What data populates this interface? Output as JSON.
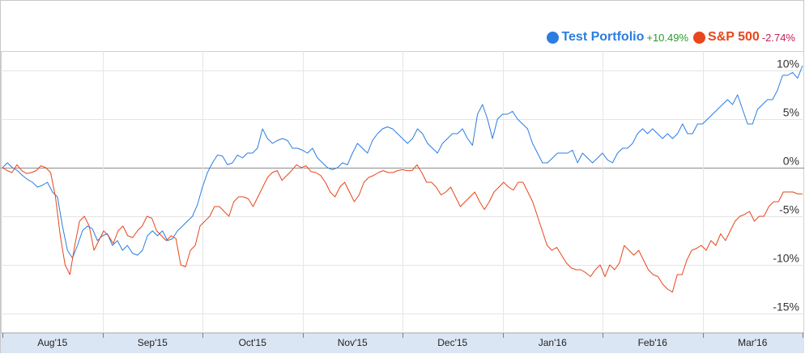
{
  "legend": {
    "items": [
      {
        "name": "Test Portfolio",
        "change": "+10.49%",
        "dot_color": "#2b7de0",
        "name_color": "#2b7de0",
        "change_color": "#2a9a2a"
      },
      {
        "name": "S&P 500",
        "change": "-2.74%",
        "dot_color": "#e8461c",
        "name_color": "#e8461c",
        "change_color": "#c0225a"
      }
    ]
  },
  "chart_data": {
    "type": "line",
    "title": "",
    "xlabel": "",
    "ylabel": "",
    "ylim": [
      -17,
      12
    ],
    "y_ticks": [
      {
        "value": 10,
        "label": "10%"
      },
      {
        "value": 5,
        "label": "5%"
      },
      {
        "value": 0,
        "label": "0%"
      },
      {
        "value": -5,
        "label": "-5%"
      },
      {
        "value": -10,
        "label": "-10%"
      },
      {
        "value": -15,
        "label": "-15%"
      }
    ],
    "x_ticks": [
      "Aug'15",
      "Sep'15",
      "Oct'15",
      "Nov'15",
      "Dec'15",
      "Jan'16",
      "Feb'16",
      "Mar'16"
    ],
    "grid": true,
    "legend_position": "top-right",
    "series": [
      {
        "name": "Test Portfolio",
        "color": "#2b7de0",
        "values": [
          0,
          0.5,
          0,
          -0.3,
          -0.8,
          -1.2,
          -1.5,
          -2,
          -1.8,
          -1.5,
          -2.5,
          -3,
          -6,
          -8.5,
          -9.3,
          -8,
          -6.5,
          -6,
          -6.3,
          -7.5,
          -7,
          -6.8,
          -8,
          -7.5,
          -8.5,
          -8,
          -8.8,
          -9,
          -8.5,
          -7,
          -6.5,
          -7,
          -6.5,
          -7.5,
          -7.3,
          -6.5,
          -6,
          -5.5,
          -5,
          -3.8,
          -2,
          -0.5,
          0.5,
          1.3,
          1.2,
          0.3,
          0.5,
          1.3,
          1,
          1.5,
          1.5,
          2,
          4,
          3,
          2.5,
          2.8,
          3,
          2.8,
          2,
          2,
          1.8,
          1.5,
          2,
          1,
          0.5,
          0,
          -0.2,
          0,
          0.5,
          0.3,
          1.5,
          2.5,
          2,
          1.5,
          2.8,
          3.5,
          4,
          4.2,
          4,
          3.5,
          3,
          2.5,
          3,
          4,
          3.5,
          2.5,
          2,
          1.5,
          2.5,
          3,
          3.5,
          3.5,
          4,
          3,
          2.3,
          5.5,
          6.5,
          5,
          3,
          5,
          5.5,
          5.5,
          5.8,
          5,
          4.5,
          4,
          2.5,
          1.5,
          0.5,
          0.5,
          1,
          1.5,
          1.5,
          1.5,
          1.8,
          0.5,
          1.5,
          1,
          0.5,
          1,
          1.5,
          0.8,
          0.5,
          1.5,
          2,
          2,
          2.5,
          3.5,
          4,
          3.5,
          4,
          3.5,
          3,
          3.5,
          3,
          3.5,
          4.5,
          3.5,
          3.5,
          4.5,
          4.5,
          5,
          5.5,
          6,
          6.5,
          7,
          6.5,
          7.5,
          6,
          4.5,
          4.5,
          6,
          6.5,
          7,
          7,
          8,
          9.5,
          9.5,
          9.8,
          9.2,
          10.5
        ]
      },
      {
        "name": "S&P 500",
        "color": "#e8461c",
        "values": [
          0,
          -0.3,
          -0.5,
          0.3,
          -0.3,
          -0.6,
          -0.5,
          -0.3,
          0.2,
          0,
          -0.5,
          -3,
          -7,
          -10,
          -11,
          -8,
          -5.5,
          -5,
          -6,
          -8.5,
          -7.5,
          -6.5,
          -7,
          -7.8,
          -6.5,
          -6,
          -7,
          -7.2,
          -6.5,
          -6,
          -5,
          -5.2,
          -6.5,
          -7,
          -7.5,
          -7,
          -7.3,
          -10,
          -10.2,
          -8.5,
          -8,
          -6,
          -5.5,
          -5,
          -4,
          -4,
          -4.5,
          -5,
          -3.5,
          -3,
          -3,
          -3.2,
          -4,
          -3,
          -2,
          -1,
          -0.5,
          -0.3,
          -1.3,
          -0.8,
          -0.3,
          0.3,
          0,
          0.2,
          -0.4,
          -0.5,
          -0.8,
          -1.5,
          -2.5,
          -3,
          -2,
          -1.5,
          -2.5,
          -3.5,
          -2.8,
          -1.5,
          -1,
          -0.8,
          -0.5,
          -0.3,
          -0.5,
          -0.5,
          -0.3,
          -0.2,
          -0.3,
          -0.3,
          0.3,
          -0.5,
          -1.5,
          -1.5,
          -2,
          -2.8,
          -2.5,
          -2,
          -3,
          -4,
          -3.5,
          -3,
          -2.5,
          -3.5,
          -4.3,
          -3.5,
          -2.5,
          -2,
          -1.5,
          -2,
          -2.3,
          -1.5,
          -1.5,
          -2.5,
          -3.5,
          -5,
          -6.5,
          -8,
          -8.5,
          -8.2,
          -9,
          -9.8,
          -10.3,
          -10.5,
          -10.5,
          -10.8,
          -11.2,
          -10.5,
          -10,
          -11.2,
          -10,
          -10.5,
          -9.8,
          -8,
          -8.5,
          -9,
          -8.5,
          -9.5,
          -10.5,
          -11,
          -11.2,
          -12,
          -12.5,
          -12.8,
          -11,
          -11,
          -9.5,
          -8.5,
          -8.3,
          -8,
          -8.5,
          -7.5,
          -8,
          -6.8,
          -7.5,
          -6.5,
          -5.5,
          -5,
          -4.8,
          -4.5,
          -5.5,
          -5,
          -5,
          -4,
          -3.5,
          -3.5,
          -2.5,
          -2.5,
          -2.5,
          -2.7,
          -2.7
        ]
      }
    ]
  }
}
